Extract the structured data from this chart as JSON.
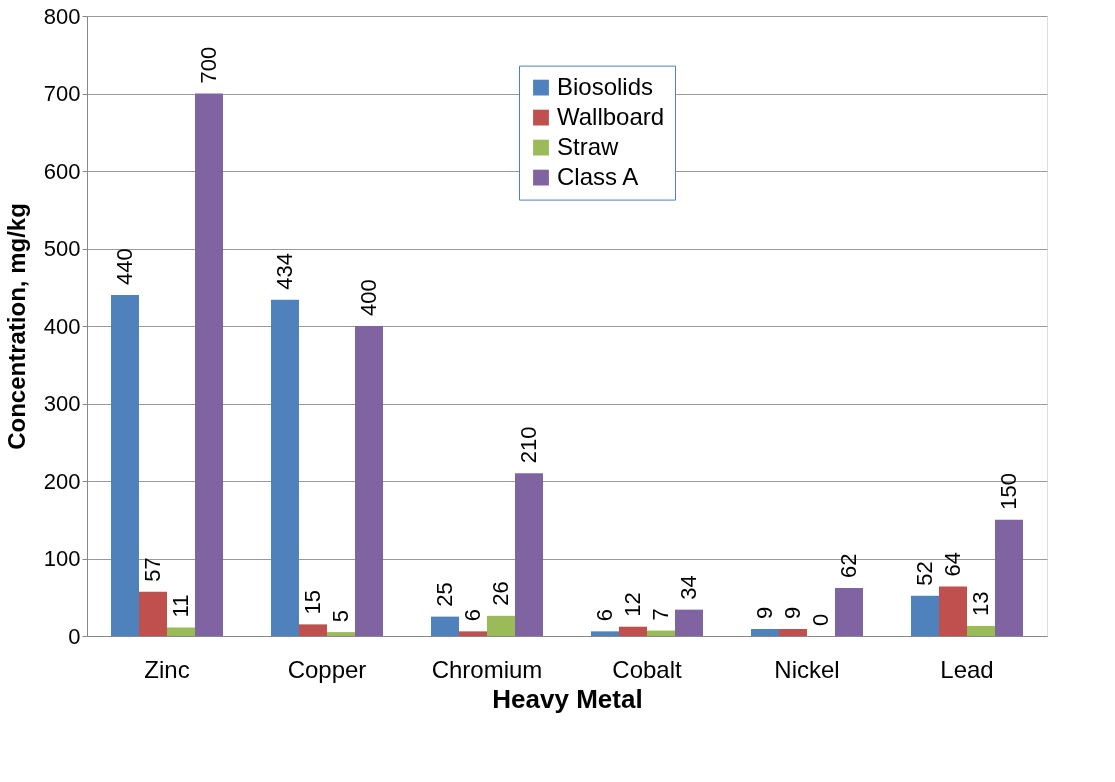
{
  "chart_data": {
    "type": "bar",
    "xlabel": "Heavy Metal",
    "ylabel": "Concentration, mg/kg",
    "categories": [
      "Zinc",
      "Copper",
      "Chromium",
      "Cobalt",
      "Nickel",
      "Lead"
    ],
    "series": [
      {
        "name": "Biosolids",
        "color": "#4f81bd",
        "values": [
          440,
          434,
          25,
          6,
          9,
          52
        ]
      },
      {
        "name": "Wallboard",
        "color": "#c0504d",
        "values": [
          57,
          15,
          6,
          12,
          9,
          64
        ]
      },
      {
        "name": "Straw",
        "color": "#9bbb59",
        "values": [
          11,
          5,
          26,
          7,
          0,
          13
        ]
      },
      {
        "name": "Class A",
        "color": "#8064a2",
        "values": [
          700,
          400,
          210,
          34,
          62,
          150
        ]
      }
    ],
    "ylim": [
      0,
      800
    ],
    "yticks": [
      0,
      100,
      200,
      300,
      400,
      500,
      600,
      700,
      800
    ],
    "grid": "y",
    "legend": "top",
    "data_labels": true
  }
}
